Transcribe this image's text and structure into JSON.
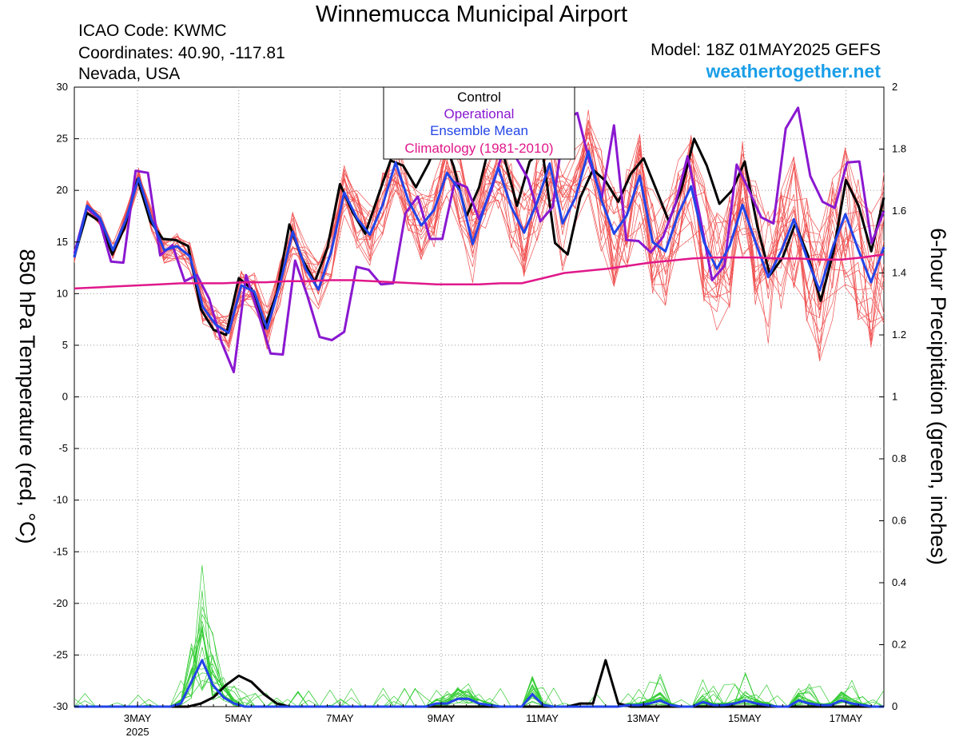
{
  "header": {
    "title": "Winnemucca Municipal Airport",
    "icao": "ICAO Code: KWMC",
    "coordinates": "Coordinates: 40.90, -117.81",
    "region": "Nevada, USA",
    "model": "Model: 18Z 01MAY2025 GEFS",
    "site": "weathertogether.net"
  },
  "colors": {
    "members_temp": "#f05050",
    "members_precip": "#33cc33",
    "control": "#000000",
    "operational": "#8a18d0",
    "ensemble_mean": "#2244e8",
    "climatology": "#e0188a",
    "site": "#1a9ee8"
  },
  "chart_data": {
    "type": "line",
    "title": "Winnemucca Municipal Airport",
    "xlabel": "",
    "ylabel": "850 hPa Temperature (red, °C)",
    "y2label": "6-hour Precipitation (green, inches)",
    "ylim": [
      -30,
      30
    ],
    "y2lim": [
      0,
      2
    ],
    "yticks": [
      "30",
      "25",
      "20",
      "15",
      "10",
      "5",
      "0",
      "-5",
      "-10",
      "-15",
      "-20",
      "-25",
      "-30"
    ],
    "y2ticks": [
      "2",
      "1.8",
      "1.6",
      "1.4",
      "1.2",
      "1",
      "0.8",
      "0.6",
      "0.4",
      "0.2",
      "0"
    ],
    "xlim_days": [
      1.75,
      17.75
    ],
    "x_unit": "day of May 2025 (6-hourly, 18Z 01MAY2025 to 18Z 17MAY2025)",
    "xticks": [
      {
        "day": 3,
        "label": "3MAY",
        "sub": "2025"
      },
      {
        "day": 5,
        "label": "5MAY",
        "sub": ""
      },
      {
        "day": 7,
        "label": "7MAY",
        "sub": ""
      },
      {
        "day": 9,
        "label": "9MAY",
        "sub": ""
      },
      {
        "day": 11,
        "label": "11MAY",
        "sub": ""
      },
      {
        "day": 13,
        "label": "13MAY",
        "sub": ""
      },
      {
        "day": 15,
        "label": "15MAY",
        "sub": ""
      },
      {
        "day": 17,
        "label": "17MAY",
        "sub": ""
      }
    ],
    "legend": [
      "Control",
      "Operational",
      "Ensemble Mean",
      "Climatology (1981-2010)"
    ],
    "legend_placement": "top-center",
    "series": [
      {
        "name": "Control",
        "axis": "temp",
        "color": "#000000",
        "values": [
          13.6,
          17.8,
          17.0,
          13.8,
          16.5,
          21.1,
          17.0,
          15.3,
          15.2,
          14.6,
          8.5,
          6.5,
          6.0,
          11.5,
          10.5,
          6.6,
          10.0,
          16.7,
          13.4,
          11.1,
          14.4,
          20.6,
          17.9,
          15.8,
          19.4,
          22.9,
          22.4,
          20.3,
          22.6,
          25.6,
          22.3,
          17.5,
          20.3,
          25.3,
          23.1,
          18.5,
          22.8,
          23.9,
          14.9,
          13.8,
          19.3,
          22.0,
          20.9,
          18.9,
          21.6,
          23.1,
          20.1,
          17.0,
          20.2,
          25.0,
          22.4,
          18.7,
          20.0,
          22.8,
          16.5,
          11.8,
          13.5,
          16.8,
          13.7,
          9.3,
          14.0,
          21.0,
          18.5,
          14.1,
          19.3
        ]
      },
      {
        "name": "Operational",
        "axis": "temp",
        "color": "#8a18d0",
        "values": [
          13.9,
          18.3,
          17.3,
          13.1,
          13.0,
          21.9,
          21.7,
          13.7,
          14.7,
          11.2,
          11.8,
          9.5,
          5.3,
          2.4,
          11.8,
          8.1,
          4.2,
          4.1,
          13.2,
          9.8,
          5.8,
          5.5,
          6.3,
          12.6,
          12.3,
          10.9,
          11.0,
          17.8,
          19.4,
          15.3,
          15.3,
          20.8,
          20.3,
          17.2,
          20.0,
          24.0,
          23.2,
          21.1,
          17.0,
          18.4,
          26.8,
          27.5,
          22.8,
          19.3,
          26.3,
          15.2,
          15.1,
          14.0,
          15.5,
          18.7,
          23.3,
          17.5,
          11.3,
          12.7,
          22.5,
          20.0,
          17.4,
          16.8,
          26.0,
          28.0,
          21.4,
          18.9,
          18.3,
          22.7,
          22.8,
          14.9,
          18.0
        ]
      },
      {
        "name": "Ensemble Mean",
        "axis": "temp",
        "color": "#2244e8",
        "values": [
          13.5,
          18.5,
          17.3,
          14.2,
          17.1,
          21.2,
          17.2,
          14.2,
          14.6,
          13.6,
          8.7,
          7.0,
          6.2,
          10.8,
          10.2,
          6.6,
          10.9,
          16.0,
          12.4,
          10.4,
          14.1,
          19.8,
          17.3,
          15.7,
          18.6,
          22.7,
          19.0,
          16.6,
          18.1,
          21.7,
          20.0,
          14.8,
          18.7,
          22.2,
          18.4,
          15.9,
          18.8,
          22.6,
          16.8,
          19.3,
          23.8,
          19.1,
          15.8,
          17.6,
          21.4,
          15.0,
          14.1,
          17.7,
          20.4,
          15.0,
          12.4,
          14.6,
          18.6,
          15.0,
          11.6,
          14.1,
          17.2,
          13.5,
          10.3,
          14.4,
          17.7,
          14.3,
          11.1,
          14.5
        ]
      },
      {
        "name": "Climatology (1981-2010)",
        "axis": "temp",
        "color": "#e0188a",
        "values": [
          10.5,
          10.6,
          10.7,
          10.8,
          10.9,
          11.0,
          11.0,
          11.0,
          11.1,
          11.1,
          11.2,
          11.2,
          11.3,
          11.3,
          11.2,
          11.1,
          11.0,
          10.9,
          10.9,
          10.9,
          11.0,
          11.0,
          11.5,
          12.0,
          12.2,
          12.4,
          12.7,
          13.0,
          13.2,
          13.4,
          13.5,
          13.5,
          13.5,
          13.4,
          13.4,
          13.3,
          13.3,
          13.5,
          13.8
        ]
      },
      {
        "name": "Control precipitation",
        "axis": "precip",
        "color": "#000000",
        "values": [
          0,
          0,
          0,
          0,
          0,
          0,
          0,
          0,
          0,
          0,
          0.01,
          0.03,
          0.07,
          0.1,
          0.08,
          0.04,
          0.01,
          0,
          0,
          0,
          0,
          0,
          0,
          0,
          0,
          0,
          0,
          0,
          0,
          0,
          0,
          0,
          0,
          0,
          0,
          0,
          0,
          0,
          0,
          0,
          0.01,
          0.01,
          0.15,
          0.01,
          0,
          0,
          0,
          0,
          0,
          0,
          0,
          0,
          0,
          0,
          0,
          0,
          0,
          0,
          0,
          0,
          0,
          0,
          0,
          0,
          0
        ]
      },
      {
        "name": "Ensemble Mean precipitation",
        "axis": "precip",
        "color": "#2244e8",
        "values": [
          0,
          0,
          0,
          0,
          0,
          0,
          0,
          0,
          0,
          0,
          0.01,
          0.08,
          0.15,
          0.07,
          0.03,
          0.01,
          0,
          0,
          0,
          0,
          0,
          0,
          0,
          0,
          0,
          0,
          0,
          0,
          0,
          0,
          0,
          0,
          0,
          0,
          0.01,
          0.01,
          0.025,
          0.025,
          0.01,
          0.005,
          0,
          0,
          0,
          0.04,
          0.005,
          0,
          0,
          0,
          0,
          0,
          0,
          0,
          0.005,
          0.005,
          0.01,
          0.02,
          0.005,
          0,
          0,
          0.015,
          0.005,
          0.005,
          0.01,
          0.02,
          0.01,
          0.005,
          0,
          0,
          0.02,
          0.01,
          0.005,
          0.005,
          0.02,
          0.01,
          0.005,
          0,
          0
        ]
      }
    ]
  }
}
